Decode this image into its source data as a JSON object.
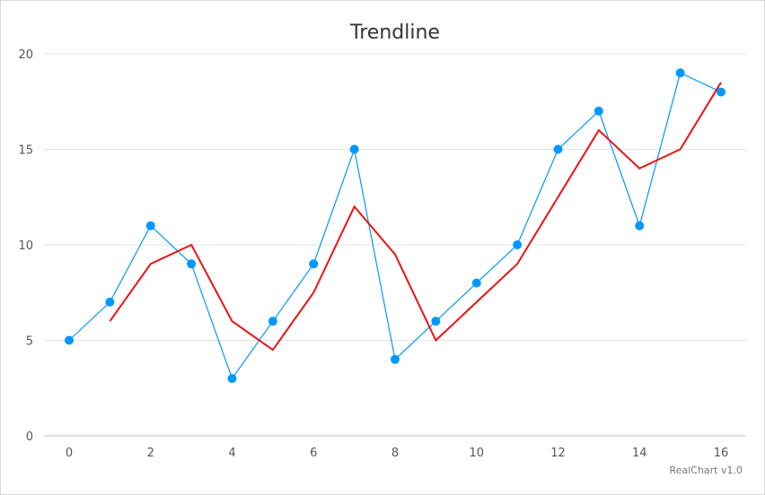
{
  "chart_data": {
    "type": "line",
    "title": "Trendline",
    "credit": "RealChart v1.0",
    "xlim": [
      0,
      16
    ],
    "ylim": [
      0,
      20
    ],
    "x_ticks": [
      "0",
      "2",
      "4",
      "6",
      "8",
      "10",
      "12",
      "14",
      "16"
    ],
    "y_ticks": [
      "0",
      "5",
      "10",
      "15",
      "20"
    ],
    "grid": true,
    "legend": "none",
    "series": [
      {
        "kind": "line-markers",
        "color": "#0098ff",
        "x": [
          0,
          1,
          2,
          3,
          4,
          5,
          6,
          7,
          8,
          9,
          10,
          11,
          12,
          13,
          14,
          15,
          16
        ],
        "values": [
          5,
          7,
          11,
          9,
          3,
          6,
          9,
          15,
          4,
          6,
          8,
          10,
          15,
          17,
          11,
          19,
          18
        ]
      },
      {
        "kind": "trendline",
        "color": "#ee1111",
        "x": [
          1,
          2,
          3,
          4,
          5,
          6,
          7,
          8,
          9,
          10,
          11,
          12,
          13,
          14,
          15,
          16
        ],
        "values": [
          6,
          9,
          10,
          6,
          4.5,
          7.5,
          12,
          9.5,
          5,
          7,
          9,
          12.5,
          16,
          14,
          15,
          18.5
        ]
      }
    ]
  }
}
